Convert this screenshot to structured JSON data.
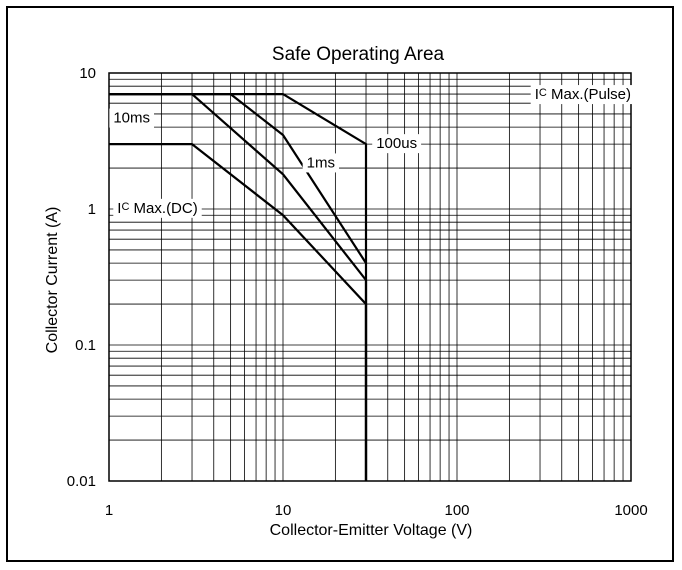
{
  "chart_data": {
    "type": "line",
    "title": "Safe Operating Area",
    "xlabel": "Collector-Emitter Voltage (V)",
    "ylabel": "Collector Current (A)",
    "xscale": "log",
    "yscale": "log",
    "xlim": [
      1,
      1000
    ],
    "ylim": [
      0.01,
      10
    ],
    "grid": true,
    "xticks": [
      {
        "value": 1,
        "label": "1"
      },
      {
        "value": 10,
        "label": "10"
      },
      {
        "value": 100,
        "label": "100"
      },
      {
        "value": 1000,
        "label": "1000"
      }
    ],
    "yticks": [
      {
        "value": 10,
        "label": "10"
      },
      {
        "value": 1,
        "label": "1"
      },
      {
        "value": 0.1,
        "label": "0.1"
      },
      {
        "value": 0.01,
        "label": "0.01"
      }
    ],
    "series": [
      {
        "name": "10ms",
        "x": [
          1,
          3,
          10,
          30,
          30
        ],
        "y": [
          7,
          7,
          1.8,
          0.3,
          0.01
        ]
      },
      {
        "name": "1ms",
        "x": [
          1,
          5,
          10,
          30
        ],
        "y": [
          7,
          7,
          3.5,
          0.4
        ]
      },
      {
        "name": "100us",
        "x": [
          1,
          10,
          30,
          30
        ],
        "y": [
          7,
          7,
          3,
          0.01
        ]
      },
      {
        "name": "Ic Max.(DC)",
        "x": [
          1,
          3,
          10,
          30,
          30
        ],
        "y": [
          3,
          3,
          0.9,
          0.2,
          0.01
        ]
      }
    ],
    "annotations": [
      {
        "id": "ic_pulse",
        "prefix": "I",
        "sub": "C",
        "text": " Max.(Pulse)",
        "x": 1000,
        "y": 7,
        "anchor": "end"
      },
      {
        "id": "lbl_10ms",
        "prefix": "",
        "sub": "",
        "text": "10ms",
        "x": 1.35,
        "y": 4.7,
        "anchor": "middle"
      },
      {
        "id": "lbl_1ms",
        "prefix": "",
        "sub": "",
        "text": "1ms",
        "x": 16.5,
        "y": 2.2,
        "anchor": "middle"
      },
      {
        "id": "lbl_100us",
        "prefix": "",
        "sub": "",
        "text": "100us",
        "x": 45,
        "y": 3.05,
        "anchor": "middle"
      },
      {
        "id": "ic_dc",
        "prefix": "I",
        "sub": "C",
        "text": " Max.(DC)",
        "x": 1.9,
        "y": 1.02,
        "anchor": "middle"
      }
    ]
  }
}
